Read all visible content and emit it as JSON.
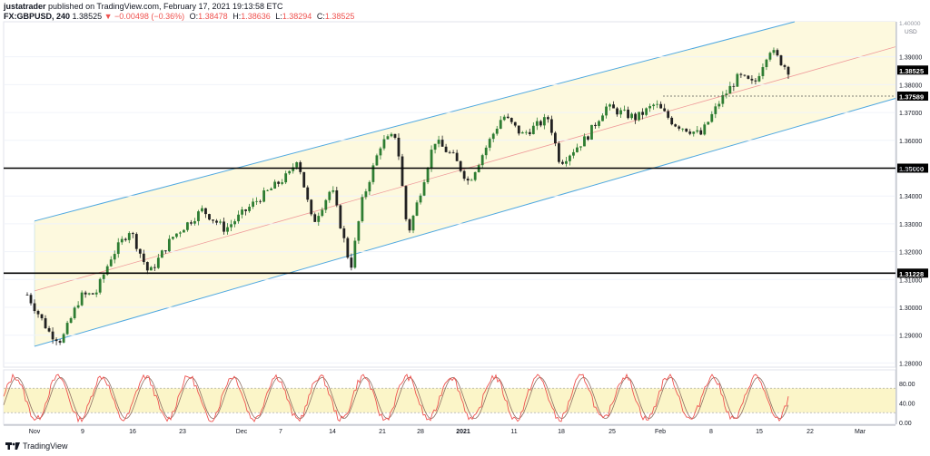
{
  "header": {
    "author": "justatrader",
    "published": "published on TradingView.com, February 17, 2021 19:13:58 ETC",
    "symbol": "FX:GBPUSD, 240",
    "last": "1.38525",
    "arrow": "▼",
    "change": "−0.00498 (−0.36%)",
    "o_label": "O:",
    "o_value": "1.38478",
    "h_label": "H:",
    "h_value": "1.38636",
    "l_label": "L:",
    "l_value": "1.38294",
    "c_label": "C:",
    "c_value": "1.38525"
  },
  "footer": {
    "brand": "TradingView"
  },
  "colors": {
    "channel_line": "#4fa8e0",
    "channel_fill": "#fdf9de",
    "mid_line": "#ef9a9a",
    "candle_up": "#2e7d32",
    "candle_down": "#212121",
    "stoch_k": "#ef5350",
    "stoch_d": "#8d6e63",
    "stoch_band": "#fbf5c8",
    "level_line": "#000000"
  },
  "chart_data": {
    "type": "candlestick",
    "symbol": "FX:GBPUSD",
    "timeframe": "240",
    "currency": "USD",
    "price_axis_ticks": [
      "1.39000",
      "1.38000",
      "1.37000",
      "1.36000",
      "1.35000",
      "1.34000",
      "1.33000",
      "1.32000",
      "1.31000",
      "1.30000",
      "1.29000",
      "1.28000"
    ],
    "price_axis_top": "1.40000",
    "ylim": [
      1.2785,
      1.4026
    ],
    "x_ticks": [
      "Nov",
      "9",
      "16",
      "23",
      "Dec",
      "7",
      "14",
      "21",
      "28",
      "2021",
      "11",
      "18",
      "25",
      "Feb",
      "8",
      "15",
      "22",
      "Mar"
    ],
    "price_path_keypoints": [
      {
        "t": 0.0,
        "p": 1.3045
      },
      {
        "t": 0.03,
        "p": 1.2905
      },
      {
        "t": 0.045,
        "p": 1.288
      },
      {
        "t": 0.07,
        "p": 1.304
      },
      {
        "t": 0.09,
        "p": 1.305
      },
      {
        "t": 0.11,
        "p": 1.318
      },
      {
        "t": 0.135,
        "p": 1.328
      },
      {
        "t": 0.16,
        "p": 1.312
      },
      {
        "t": 0.19,
        "p": 1.325
      },
      {
        "t": 0.23,
        "p": 1.335
      },
      {
        "t": 0.26,
        "p": 1.328
      },
      {
        "t": 0.3,
        "p": 1.338
      },
      {
        "t": 0.345,
        "p": 1.348
      },
      {
        "t": 0.355,
        "p": 1.354
      },
      {
        "t": 0.375,
        "p": 1.33
      },
      {
        "t": 0.4,
        "p": 1.343
      },
      {
        "t": 0.425,
        "p": 1.314
      },
      {
        "t": 0.44,
        "p": 1.338
      },
      {
        "t": 0.465,
        "p": 1.359
      },
      {
        "t": 0.485,
        "p": 1.362
      },
      {
        "t": 0.5,
        "p": 1.326
      },
      {
        "t": 0.515,
        "p": 1.34
      },
      {
        "t": 0.535,
        "p": 1.36
      },
      {
        "t": 0.56,
        "p": 1.354
      },
      {
        "t": 0.58,
        "p": 1.345
      },
      {
        "t": 0.6,
        "p": 1.356
      },
      {
        "t": 0.625,
        "p": 1.369
      },
      {
        "t": 0.65,
        "p": 1.362
      },
      {
        "t": 0.685,
        "p": 1.368
      },
      {
        "t": 0.7,
        "p": 1.352
      },
      {
        "t": 0.735,
        "p": 1.361
      },
      {
        "t": 0.76,
        "p": 1.372
      },
      {
        "t": 0.8,
        "p": 1.368
      },
      {
        "t": 0.825,
        "p": 1.373
      },
      {
        "t": 0.85,
        "p": 1.366
      },
      {
        "t": 0.885,
        "p": 1.362
      },
      {
        "t": 0.91,
        "p": 1.374
      },
      {
        "t": 0.935,
        "p": 1.383
      },
      {
        "t": 0.955,
        "p": 1.38
      },
      {
        "t": 0.975,
        "p": 1.393
      },
      {
        "t": 1.0,
        "p": 1.3852
      }
    ],
    "levels": [
      {
        "price": 1.35,
        "label": "1.35000",
        "style": "solid"
      },
      {
        "price": 1.31228,
        "label": "1.31228",
        "style": "solid"
      },
      {
        "price": 1.37589,
        "label": "1.37589",
        "style": "dotted"
      }
    ],
    "current_price": {
      "price": 1.38525,
      "label": "1.38525"
    },
    "channel": {
      "upper_start": {
        "t": 0.0,
        "p": 1.331
      },
      "upper_end": {
        "t": 1.0,
        "p": 1.402
      },
      "lower_start": {
        "t": 0.0,
        "p": 1.286
      },
      "lower_end": {
        "t": 1.0,
        "p": 1.364
      }
    },
    "oscillator": {
      "type": "stochastic",
      "axis_ticks": [
        "80.00",
        "40.00",
        "0.00"
      ],
      "upper_band": 70,
      "lower_band": 20,
      "cycles": 18
    }
  }
}
